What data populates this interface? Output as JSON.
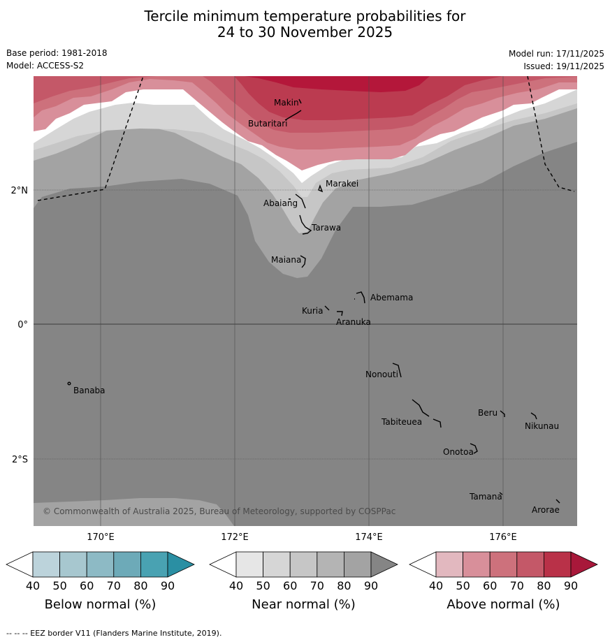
{
  "title_line1": "Tercile minimum temperature probabilities for",
  "title_line2": "24 to 30 November 2025",
  "base_period": "Base period: 1981-2018",
  "model": "Model: ACCESS-S2",
  "model_run": "Model run: 17/11/2025",
  "issued": "Issued: 19/11/2025",
  "lat_labels": [
    "2°N",
    "0°",
    "2°S"
  ],
  "lon_labels": [
    "170°E",
    "172°E",
    "174°E",
    "176°E"
  ],
  "places": [
    {
      "name": "Makin"
    },
    {
      "name": "Butaritari"
    },
    {
      "name": "Marakei"
    },
    {
      "name": "Abaiang"
    },
    {
      "name": "Tarawa"
    },
    {
      "name": "Maiana"
    },
    {
      "name": "Abemama"
    },
    {
      "name": "Kuria"
    },
    {
      "name": "Aranuka"
    },
    {
      "name": "Nonouti"
    },
    {
      "name": "Banaba"
    },
    {
      "name": "Beru"
    },
    {
      "name": "Tabiteuea"
    },
    {
      "name": "Nikunau"
    },
    {
      "name": "Onotoa"
    },
    {
      "name": "Tamana"
    },
    {
      "name": "Arorae"
    }
  ],
  "copyright": "© Commonwealth of Australia 2025, Bureau of Meteorology, supported by COSPPac",
  "colorbars": [
    {
      "label": "Below normal (%)",
      "ticks": [
        "40",
        "50",
        "60",
        "70",
        "80",
        "90"
      ],
      "colors": [
        "#ffffff",
        "#bcd3db",
        "#a7c7cf",
        "#8dbac5",
        "#6daab8",
        "#49a2b2",
        "#2a8fa3"
      ]
    },
    {
      "label": "Near normal (%)",
      "ticks": [
        "40",
        "50",
        "60",
        "70",
        "80",
        "90"
      ],
      "colors": [
        "#ffffff",
        "#e6e6e6",
        "#d6d6d6",
        "#c6c6c6",
        "#b4b4b4",
        "#a3a3a3",
        "#858585"
      ]
    },
    {
      "label": "Above normal (%)",
      "ticks": [
        "40",
        "50",
        "60",
        "70",
        "80",
        "90"
      ],
      "colors": [
        "#ffffff",
        "#e2b8bf",
        "#d88f9a",
        "#cd717c",
        "#c45868",
        "#b93148",
        "#a8183a"
      ]
    }
  ],
  "footer": "--  --  -- EEZ border V11 (Flanders Marine Institute, 2019).",
  "colors": {
    "near_dark": "#858585",
    "near_mid": "#a3a3a3",
    "near_light": "#c6c6c6",
    "near_lighter": "#d6d6d6",
    "white": "#ffffff",
    "above_1": "#d88f9a",
    "above_2": "#cd717c",
    "above_3": "#c45868",
    "above_4": "#bb3b50",
    "above_5": "#b4173a"
  }
}
